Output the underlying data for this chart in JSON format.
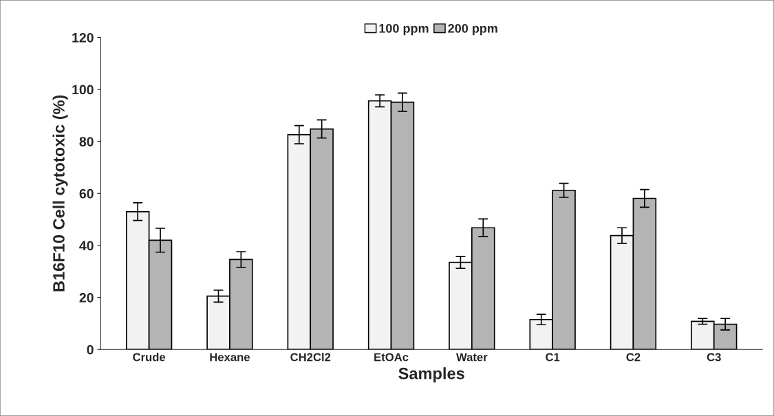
{
  "chart_data": {
    "type": "bar",
    "xlabel": "Samples",
    "ylabel": "B16F10 Cell cytotoxic (%)",
    "categories": [
      "Crude",
      "Hexane",
      "CH2Cl2",
      "EtOAc",
      "Water",
      "C1",
      "C2",
      "C3"
    ],
    "series": [
      {
        "name": "100 ppm",
        "color": "#f2f2f2",
        "values": [
          53,
          20.5,
          82.6,
          95.6,
          33.5,
          11.5,
          43.8,
          10.8
        ],
        "errors": [
          3.4,
          2.3,
          3.5,
          2.3,
          2.3,
          2,
          3,
          1.1
        ]
      },
      {
        "name": "200 ppm",
        "color": "#b4b4b4",
        "values": [
          42,
          34.6,
          84.8,
          95.1,
          46.8,
          61.2,
          58.1,
          9.7
        ],
        "errors": [
          4.6,
          3,
          3.5,
          3.5,
          3.4,
          2.7,
          3.4,
          2.2
        ]
      }
    ],
    "ylim": [
      0,
      120
    ],
    "yticks": [
      0,
      20,
      40,
      60,
      80,
      100,
      120
    ],
    "grid": false,
    "legend": "top"
  }
}
